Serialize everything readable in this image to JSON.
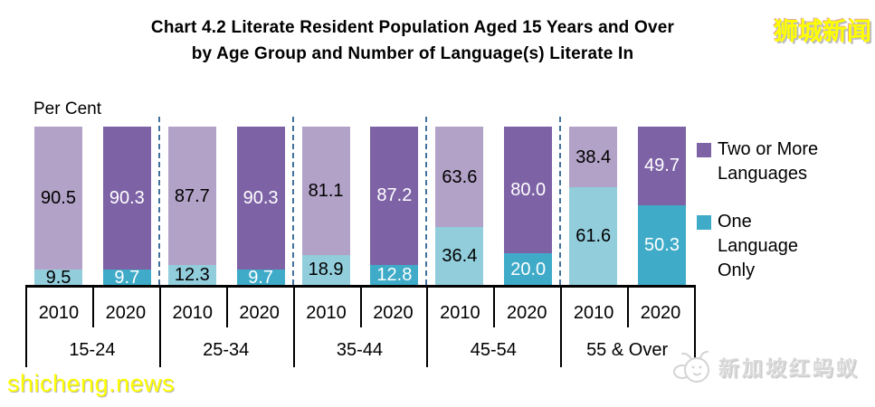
{
  "title": {
    "line1": "Chart 4.2  Literate Resident Population Aged 15 Years and Over",
    "line2": "by Age Group and Number of Language(s) Literate In"
  },
  "watermarks": {
    "top_right": "狮城新闻",
    "bottom_left": "shicheng.news",
    "bottom_right": "新加坡红蚂蚁"
  },
  "chart_data": {
    "type": "bar",
    "stacked": true,
    "title": "Chart 4.2 Literate Resident Population Aged 15 Years and Over by Age Group and Number of Language(s) Literate In",
    "unit_label": "Per Cent",
    "ylim": [
      0,
      100
    ],
    "grid": false,
    "legend_position": "right",
    "categories": [
      "15-24",
      "25-34",
      "35-44",
      "45-54",
      "55 & Over"
    ],
    "bar_years": [
      "2010",
      "2020"
    ],
    "series": [
      {
        "name": "Two or More Languages",
        "colors": {
          "2010": "#b2a2c7",
          "2020": "#7d63a6"
        },
        "values": {
          "2010": [
            90.5,
            87.7,
            81.1,
            63.6,
            38.4
          ],
          "2020": [
            90.3,
            90.3,
            87.2,
            80.0,
            49.7
          ]
        }
      },
      {
        "name": "One Language Only",
        "colors": {
          "2010": "#92cddc",
          "2020": "#3fabc8"
        },
        "values": {
          "2010": [
            9.5,
            12.3,
            18.9,
            36.4,
            61.6
          ],
          "2020": [
            9.7,
            9.7,
            12.8,
            20.0,
            50.3
          ]
        }
      }
    ],
    "value_label_colors": {
      "2010": "#000000",
      "2020": "#ffffff"
    },
    "separator_color": "#41719c",
    "axis_color": "#000000"
  }
}
